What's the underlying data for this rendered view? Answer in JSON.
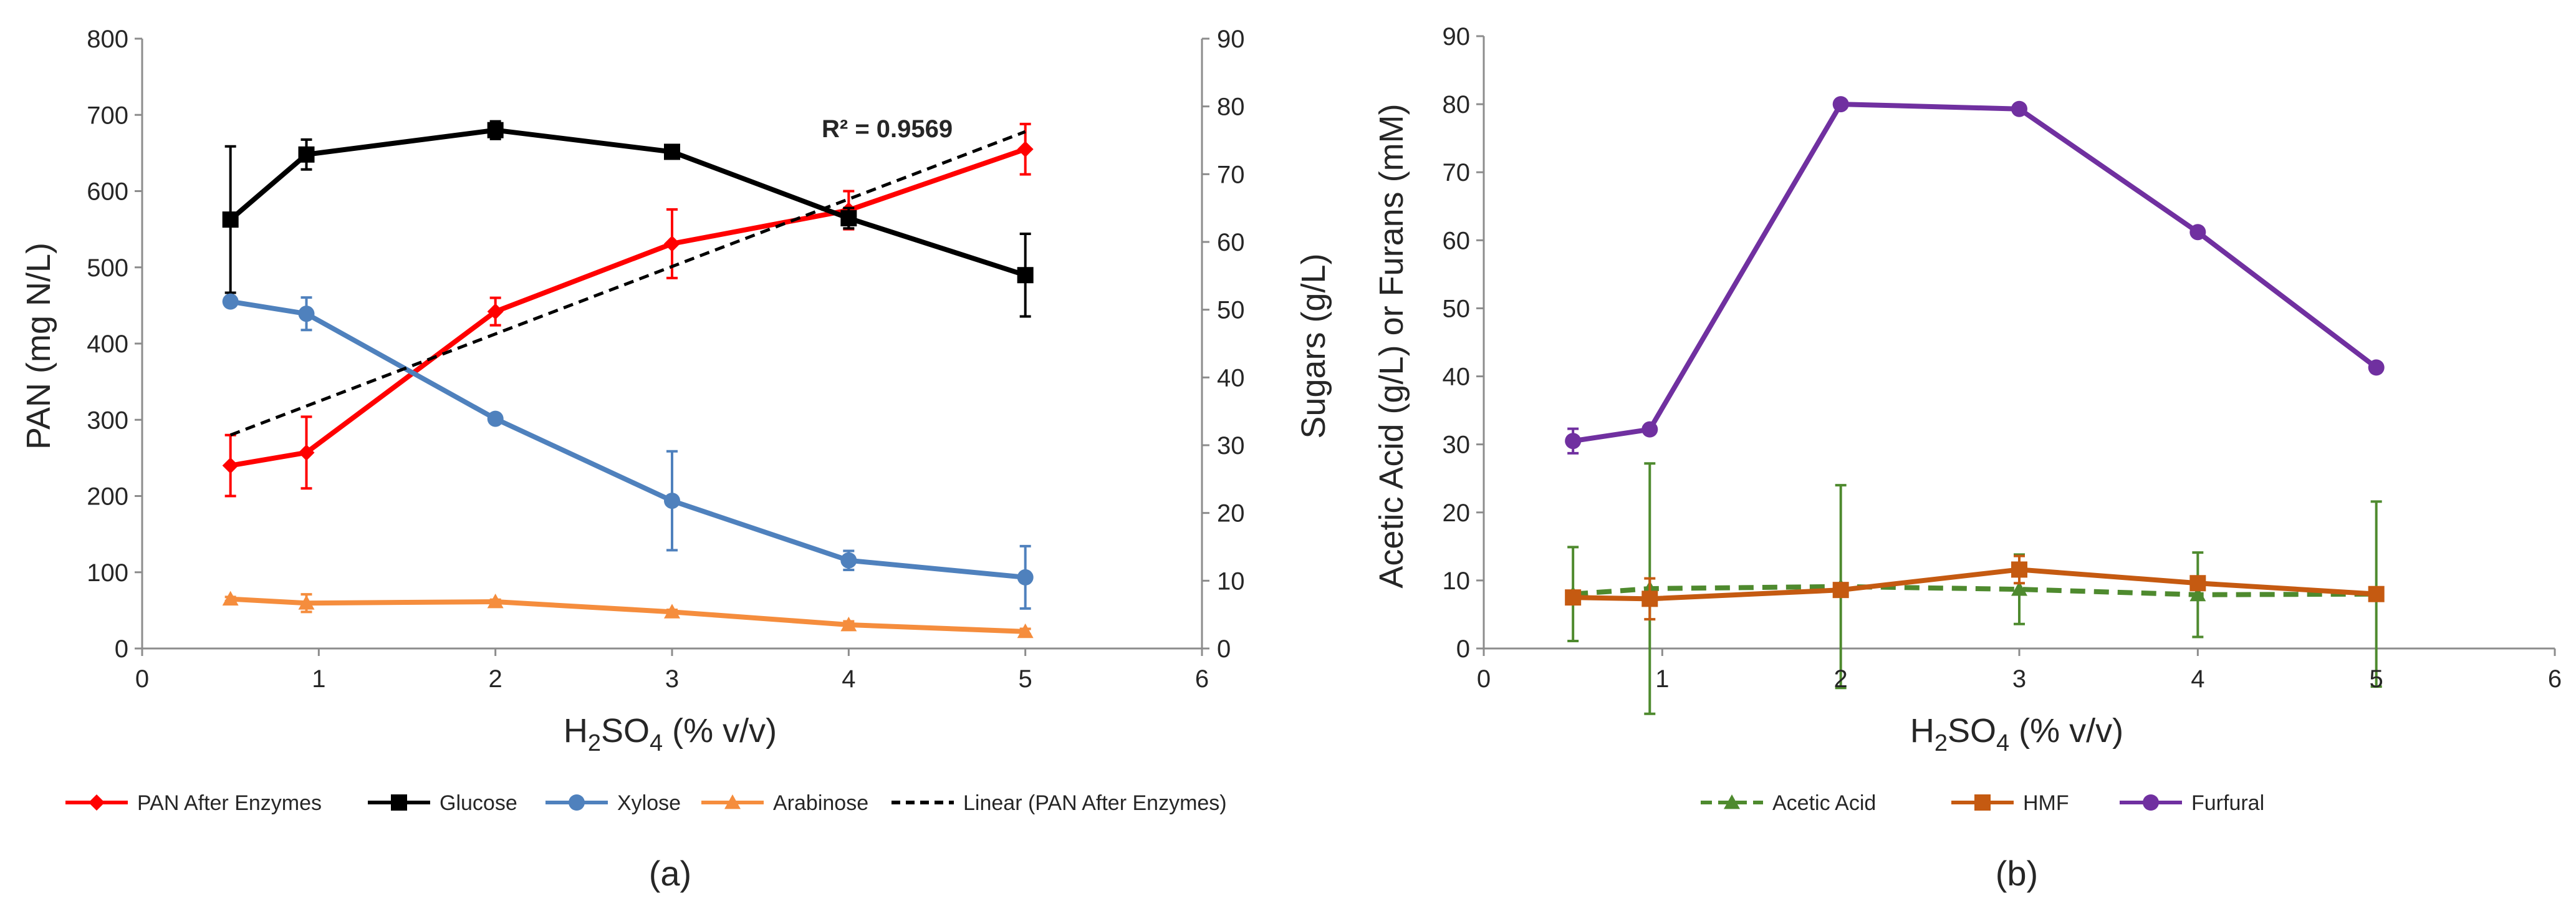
{
  "chart_data": [
    {
      "type": "line",
      "panel_label": "(a)",
      "xlabel": {
        "main": "H",
        "sub1": "2",
        "mid": "SO",
        "sub2": "4",
        "rest": " (% v/v)"
      },
      "ylabel": "PAN (mg N/L)",
      "y2label": "Sugars (g/L)",
      "xlim": [
        0,
        6
      ],
      "ylim": [
        0,
        800
      ],
      "y2lim": [
        0,
        90
      ],
      "xticks": [
        "0",
        "1",
        "2",
        "3",
        "4",
        "5",
        "6"
      ],
      "yticks": [
        "0",
        "100",
        "200",
        "300",
        "400",
        "500",
        "600",
        "700",
        "800"
      ],
      "y2ticks": [
        "0",
        "10",
        "20",
        "30",
        "40",
        "50",
        "60",
        "70",
        "80",
        "90"
      ],
      "annotation": "R² = 0.9569",
      "series": [
        {
          "name": "PAN After Enzymes",
          "axis": "left",
          "color": "#ff0000",
          "marker": "diamond",
          "dash": "solid",
          "x": [
            0.5,
            0.93,
            2,
            3,
            4,
            5
          ],
          "y": [
            240,
            257,
            442,
            531,
            575,
            655
          ],
          "err": [
            40,
            47,
            18,
            45,
            25,
            33
          ]
        },
        {
          "name": "Glucose",
          "axis": "right",
          "color": "#000000",
          "marker": "square",
          "dash": "solid",
          "x": [
            0.5,
            0.93,
            2,
            3,
            4,
            5
          ],
          "y": [
            63.3,
            72.9,
            76.5,
            73.3,
            63.5,
            55.1
          ],
          "err": [
            10.8,
            2.2,
            1.3,
            0.6,
            1.5,
            6.1
          ]
        },
        {
          "name": "Xylose",
          "axis": "right",
          "color": "#4f81bd",
          "marker": "circle",
          "dash": "solid",
          "x": [
            0.5,
            0.93,
            2,
            3,
            4,
            5
          ],
          "y": [
            51.2,
            49.4,
            33.9,
            21.8,
            13.0,
            10.5
          ],
          "err": [
            0.5,
            2.4,
            0.4,
            7.3,
            1.4,
            4.6
          ]
        },
        {
          "name": "Arabinose",
          "axis": "right",
          "color": "#f58d3d",
          "marker": "triangle",
          "dash": "solid",
          "x": [
            0.5,
            0.93,
            2,
            3,
            4,
            5
          ],
          "y": [
            7.3,
            6.7,
            6.9,
            5.4,
            3.5,
            2.5
          ],
          "err": [
            0.3,
            1.3,
            0.3,
            0.3,
            0.5,
            0.4
          ]
        },
        {
          "name": "Linear (PAN After Enzymes)",
          "axis": "left",
          "color": "#000000",
          "marker": "none",
          "dash": "dashed",
          "x": [
            0.5,
            5
          ],
          "y": [
            280,
            678
          ],
          "err": [
            0,
            0
          ]
        }
      ]
    },
    {
      "type": "line",
      "panel_label": "(b)",
      "xlabel": {
        "main": "H",
        "sub1": "2",
        "mid": "SO",
        "sub2": "4",
        "rest": " (% v/v)"
      },
      "ylabel": "Acetic Acid (g/L) or  Furans (mM)",
      "xlim": [
        0,
        6
      ],
      "ylim": [
        0,
        90
      ],
      "xticks": [
        "0",
        "1",
        "2",
        "3",
        "4",
        "5",
        "6"
      ],
      "yticks": [
        "0",
        "10",
        "20",
        "30",
        "40",
        "50",
        "60",
        "70",
        "80",
        "90"
      ],
      "series": [
        {
          "name": "Acetic Acid",
          "color": "#4e8a2e",
          "marker": "triangle",
          "dash": "dashed",
          "x": [
            0.5,
            0.93,
            2,
            3,
            4,
            5
          ],
          "y": [
            8.0,
            8.8,
            9.1,
            8.7,
            7.9,
            8.0
          ],
          "err": [
            6.9,
            18.4,
            14.9,
            5.1,
            6.2,
            13.6
          ]
        },
        {
          "name": "HMF",
          "color": "#c55a11",
          "marker": "square",
          "dash": "solid",
          "x": [
            0.5,
            0.93,
            2,
            3,
            4,
            5
          ],
          "y": [
            7.5,
            7.3,
            8.6,
            11.6,
            9.6,
            8.0
          ],
          "err": [
            0,
            3.0,
            0,
            2.0,
            0,
            0
          ]
        },
        {
          "name": "Furfural",
          "color": "#7030a0",
          "marker": "circle",
          "dash": "solid",
          "x": [
            0.5,
            0.93,
            2,
            3,
            4,
            5
          ],
          "y": [
            30.5,
            32.2,
            80.0,
            79.3,
            61.2,
            41.3
          ],
          "err": [
            1.8,
            0.6,
            0,
            0,
            0,
            0
          ]
        }
      ]
    }
  ]
}
